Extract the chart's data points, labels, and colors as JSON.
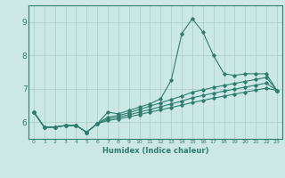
{
  "x": [
    0,
    1,
    2,
    3,
    4,
    5,
    6,
    7,
    8,
    9,
    10,
    11,
    12,
    13,
    14,
    15,
    16,
    17,
    18,
    19,
    20,
    21,
    22,
    23
  ],
  "y_main": [
    6.3,
    5.85,
    5.85,
    5.9,
    5.9,
    5.7,
    5.95,
    6.3,
    6.25,
    6.35,
    6.45,
    6.55,
    6.7,
    7.25,
    8.65,
    9.1,
    8.7,
    8.0,
    7.45,
    7.4,
    7.45,
    7.45,
    7.45,
    6.95
  ],
  "y_line2": [
    6.3,
    5.85,
    5.85,
    5.9,
    5.9,
    5.7,
    5.95,
    6.15,
    6.2,
    6.28,
    6.38,
    6.48,
    6.58,
    6.68,
    6.78,
    6.9,
    6.97,
    7.04,
    7.1,
    7.16,
    7.22,
    7.28,
    7.34,
    6.95
  ],
  "y_line3": [
    6.3,
    5.85,
    5.85,
    5.9,
    5.9,
    5.7,
    5.95,
    6.1,
    6.15,
    6.22,
    6.3,
    6.38,
    6.46,
    6.55,
    6.63,
    6.73,
    6.8,
    6.87,
    6.93,
    6.99,
    7.05,
    7.11,
    7.17,
    6.95
  ],
  "y_line4": [
    6.3,
    5.85,
    5.85,
    5.9,
    5.9,
    5.7,
    5.95,
    6.05,
    6.1,
    6.16,
    6.23,
    6.3,
    6.37,
    6.44,
    6.51,
    6.59,
    6.65,
    6.72,
    6.78,
    6.84,
    6.9,
    6.96,
    7.02,
    6.95
  ],
  "line_color": "#2e7d6e",
  "bg_color": "#cce8e4",
  "grid_color": "#aaccc8",
  "axis_color": "#2e7d6e",
  "xlabel": "Humidex (Indice chaleur)",
  "ylim": [
    5.5,
    9.5
  ],
  "xlim": [
    -0.5,
    23.5
  ],
  "yticks": [
    6,
    7,
    8,
    9
  ],
  "xticks": [
    0,
    1,
    2,
    3,
    4,
    5,
    6,
    7,
    8,
    9,
    10,
    11,
    12,
    13,
    14,
    15,
    16,
    17,
    18,
    19,
    20,
    21,
    22,
    23
  ]
}
